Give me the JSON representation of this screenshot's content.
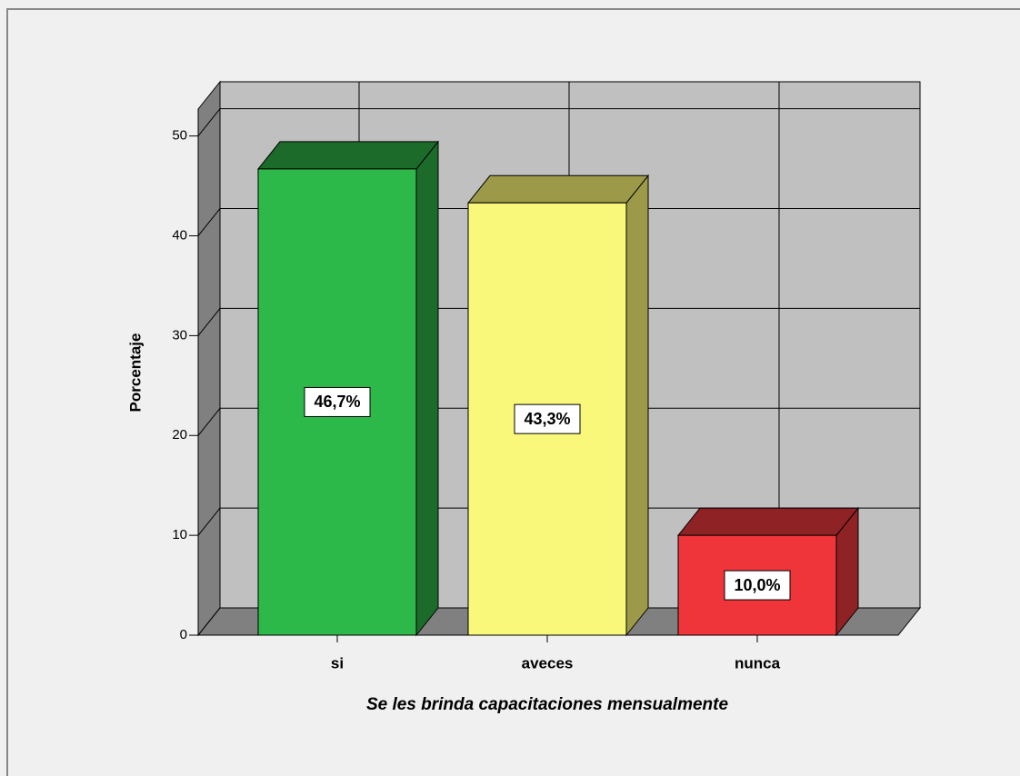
{
  "chart_data": {
    "type": "bar3d",
    "categories": [
      "si",
      "aveces",
      "nunca"
    ],
    "values": [
      46.7,
      43.3,
      10.0
    ],
    "value_labels": [
      "46,7%",
      "43,3%",
      "10,0%"
    ],
    "colors": [
      "#2db84a",
      "#faf87a",
      "#ef3539"
    ],
    "side_colors": [
      "#1c6b2b",
      "#9c9a48",
      "#8f2224"
    ],
    "top_colors": [
      "#1c6b2b",
      "#9c9a48",
      "#8f2224"
    ],
    "y_label": "Porcentaje",
    "x_label": "Se les brinda capacitaciones mensualmente",
    "ylim": [
      0,
      52.7
    ],
    "yticks": [
      0,
      10,
      20,
      30,
      40,
      50
    ],
    "grid": true
  }
}
